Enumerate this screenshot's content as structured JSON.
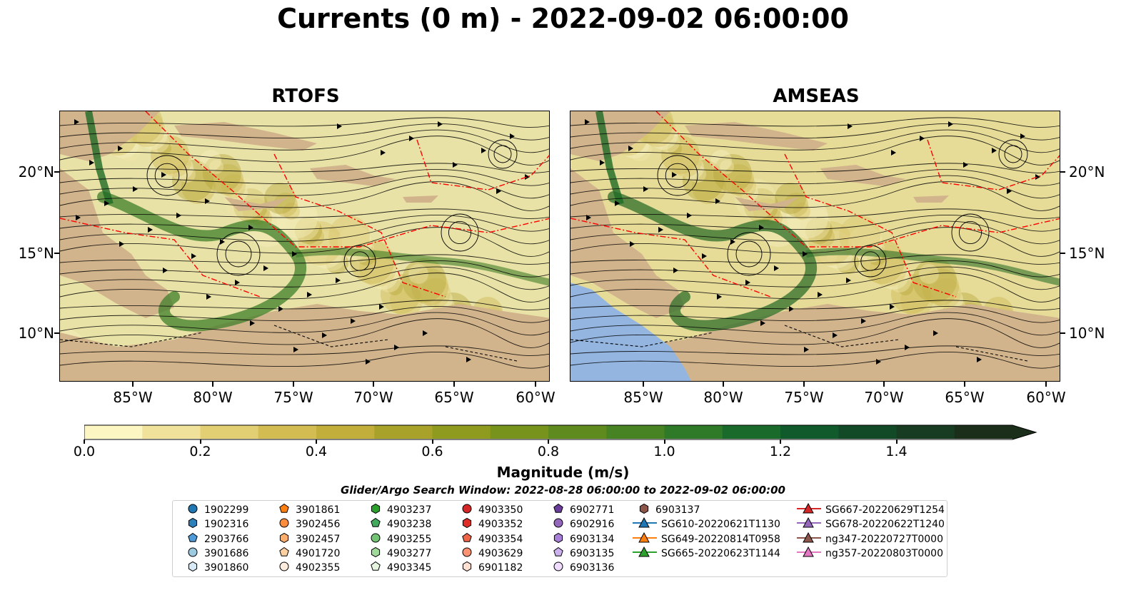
{
  "title": "Currents (0 m) - 2022-09-02 06:00:00",
  "panels": [
    {
      "title": "RTOFS",
      "ocean_color": "#e9e2a6",
      "jet_color": "#3f7f2a"
    },
    {
      "title": "AMSEAS",
      "ocean_color": "#e6dc98",
      "jet_color": "#2e6f2a"
    }
  ],
  "map_axes": {
    "lon_ticks": [
      "85°W",
      "80°W",
      "75°W",
      "70°W",
      "65°W",
      "60°W"
    ],
    "lat_ticks": [
      "20°N",
      "15°N",
      "10°N"
    ]
  },
  "colors": {
    "land": "#d2b48c",
    "pacific": "#93b5e0",
    "eez_line": "#ff0000",
    "border_line": "#000000"
  },
  "colorbar": {
    "label": "Magnitude (m/s)",
    "ticks": [
      "0.0",
      "0.2",
      "0.4",
      "0.6",
      "0.8",
      "1.0",
      "1.2",
      "1.4"
    ],
    "range": [
      0,
      1.6
    ],
    "colors": [
      "#fcf6c3",
      "#f0e29a",
      "#e2cf73",
      "#d3bd52",
      "#c2ae3a",
      "#a9a22a",
      "#8f9b1f",
      "#77931b",
      "#5f8a1e",
      "#478322",
      "#2f7a28",
      "#1a6a2c",
      "#115a2c",
      "#124a28",
      "#183c22",
      "#1b2e19"
    ]
  },
  "legend": {
    "title": "Glider/Argo Search Window: 2022-08-28 06:00:00 to 2022-09-02 06:00:00",
    "columns": [
      [
        {
          "label": "1902299",
          "marker": "circle",
          "color": "#1f77b4"
        },
        {
          "label": "1902316",
          "marker": "hexagon",
          "color": "#2c7fb8"
        },
        {
          "label": "2903766",
          "marker": "pentagon",
          "color": "#4f9bd9"
        },
        {
          "label": "3901686",
          "marker": "circle",
          "color": "#9ecae1"
        },
        {
          "label": "3901860",
          "marker": "hexagon",
          "color": "#d6e9f5"
        }
      ],
      [
        {
          "label": "3901861",
          "marker": "pentagon",
          "color": "#ff7f0e"
        },
        {
          "label": "3902456",
          "marker": "circle",
          "color": "#fd8d3c"
        },
        {
          "label": "3902457",
          "marker": "hexagon",
          "color": "#fdae6b"
        },
        {
          "label": "4901720",
          "marker": "pentagon",
          "color": "#fdd0a2"
        },
        {
          "label": "4902355",
          "marker": "circle",
          "color": "#feedde"
        }
      ],
      [
        {
          "label": "4903237",
          "marker": "hexagon",
          "color": "#2ca02c"
        },
        {
          "label": "4903238",
          "marker": "pentagon",
          "color": "#41ab5d"
        },
        {
          "label": "4903255",
          "marker": "circle",
          "color": "#74c476"
        },
        {
          "label": "4903277",
          "marker": "hexagon",
          "color": "#a1d99b"
        },
        {
          "label": "4903345",
          "marker": "pentagon",
          "color": "#e5f5e0"
        }
      ],
      [
        {
          "label": "4903350",
          "marker": "circle",
          "color": "#d62728"
        },
        {
          "label": "4903352",
          "marker": "hexagon",
          "color": "#de2d26"
        },
        {
          "label": "4903354",
          "marker": "pentagon",
          "color": "#ef6548"
        },
        {
          "label": "4903629",
          "marker": "circle",
          "color": "#fc9272"
        },
        {
          "label": "6901182",
          "marker": "hexagon",
          "color": "#fee0d2"
        }
      ],
      [
        {
          "label": "6902771",
          "marker": "pentagon",
          "color": "#6a3d9a"
        },
        {
          "label": "6902916",
          "marker": "circle",
          "color": "#9467bd"
        },
        {
          "label": "6903134",
          "marker": "hexagon",
          "color": "#a77fd6"
        },
        {
          "label": "6903135",
          "marker": "pentagon",
          "color": "#cbb2ee"
        },
        {
          "label": "6903136",
          "marker": "circle",
          "color": "#efdcff"
        }
      ],
      [
        {
          "label": "6903137",
          "marker": "hexagon",
          "color": "#8c564b"
        },
        {
          "label": "SG610-20220621T1130",
          "marker": "triangle-line",
          "color": "#1f77b4"
        },
        {
          "label": "SG649-20220814T0958",
          "marker": "triangle-line",
          "color": "#ff7f0e"
        },
        {
          "label": "SG665-20220623T1144",
          "marker": "triangle-line",
          "color": "#2ca02c"
        }
      ],
      [
        {
          "label": "SG667-20220629T1254",
          "marker": "triangle-line",
          "color": "#d62728"
        },
        {
          "label": "SG678-20220622T1240",
          "marker": "triangle-line",
          "color": "#9467bd"
        },
        {
          "label": "ng347-20220727T0000",
          "marker": "triangle-line",
          "color": "#8c564b"
        },
        {
          "label": "ng357-20220803T0000",
          "marker": "triangle-line",
          "color": "#e377c2"
        }
      ]
    ]
  }
}
